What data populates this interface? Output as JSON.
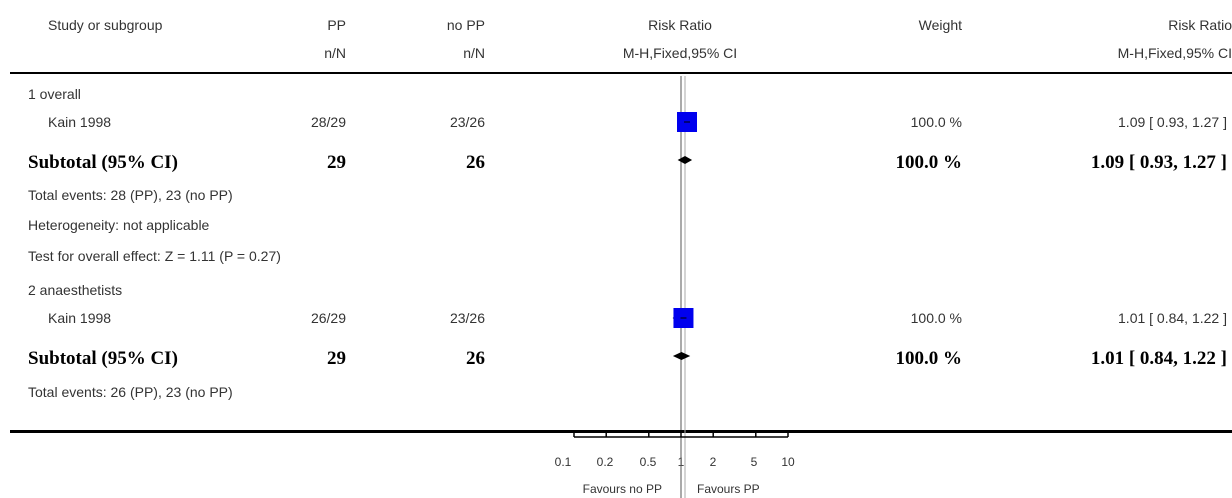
{
  "header": {
    "study_col": "Study or subgroup",
    "group1": "PP",
    "group1_sub": "n/N",
    "group2": "no PP",
    "group2_sub": "n/N",
    "plot_col": "Risk Ratio",
    "plot_col_sub": "M-H,Fixed,95% CI",
    "weight_col": "Weight",
    "effect_col": "Risk Ratio",
    "effect_col_sub": "M-H,Fixed,95% CI"
  },
  "subgroups": [
    {
      "title": "1 overall",
      "study": {
        "name": "Kain 1998",
        "pp": "28/29",
        "nopp": "23/26",
        "weight": "100.0 %",
        "ci": "1.09 [ 0.93, 1.27 ]"
      },
      "subtotal": {
        "label": "Subtotal (95% CI)",
        "pp": "29",
        "nopp": "26",
        "weight": "100.0 %",
        "ci": "1.09 [ 0.93, 1.27 ]"
      },
      "notes": [
        "Total events: 28 (PP), 23 (no PP)",
        "Heterogeneity: not applicable",
        "Test for overall effect: Z = 1.11 (P = 0.27)"
      ]
    },
    {
      "title": "2 anaesthetists",
      "study": {
        "name": "Kain 1998",
        "pp": "26/29",
        "nopp": "23/26",
        "weight": "100.0 %",
        "ci": "1.01 [ 0.84, 1.22 ]"
      },
      "subtotal": {
        "label": "Subtotal (95% CI)",
        "pp": "29",
        "nopp": "26",
        "weight": "100.0 %",
        "ci": "1.01 [ 0.84, 1.22 ]"
      },
      "notes": [
        "Total events: 26 (PP), 23 (no PP)"
      ]
    }
  ],
  "axis": {
    "ticks": [
      "0.1",
      "0.2",
      "0.5",
      "1",
      "2",
      "5",
      "10"
    ],
    "favours_left": "Favours no PP",
    "favours_right": "Favours PP"
  },
  "chart_data": {
    "type": "forest",
    "scale": "log",
    "xlim": [
      0.1,
      10
    ],
    "null_line": 1,
    "tick_values": [
      0.1,
      0.2,
      0.5,
      1,
      2,
      5,
      10
    ],
    "overall_line": 1.09,
    "colors": {
      "study_marker": "#0000ee",
      "diamond": "#000000",
      "reference_line": "#aaaaaa"
    },
    "rows": [
      {
        "label": "Kain 1998",
        "subgroup": "1 overall",
        "kind": "study",
        "rr": 1.09,
        "lower": 0.93,
        "upper": 1.27,
        "weight": 100.0
      },
      {
        "label": "Subtotal (95% CI)",
        "subgroup": "1 overall",
        "kind": "subtotal",
        "rr": 1.09,
        "lower": 0.93,
        "upper": 1.27
      },
      {
        "label": "Kain 1998",
        "subgroup": "2 anaesthetists",
        "kind": "study",
        "rr": 1.01,
        "lower": 0.84,
        "upper": 1.22,
        "weight": 100.0
      },
      {
        "label": "Subtotal (95% CI)",
        "subgroup": "2 anaesthetists",
        "kind": "subtotal",
        "rr": 1.01,
        "lower": 0.84,
        "upper": 1.22
      }
    ]
  }
}
